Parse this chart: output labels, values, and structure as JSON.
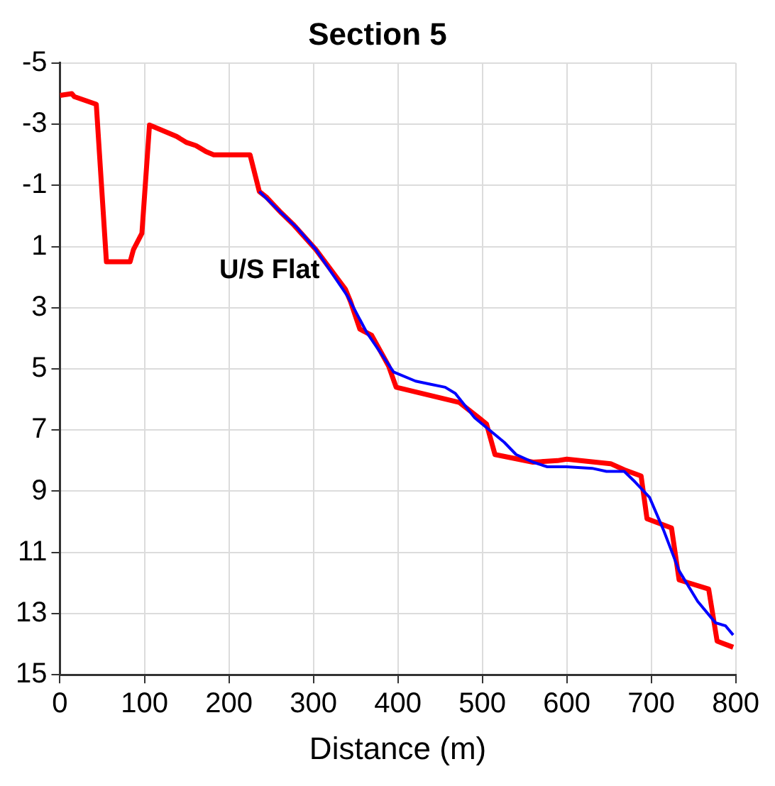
{
  "chart_data": {
    "type": "line",
    "title": "Section 5",
    "xlabel": "Distance (m)",
    "xlim": [
      0,
      800
    ],
    "xticks": [
      0,
      100,
      200,
      300,
      400,
      500,
      600,
      700,
      800
    ],
    "ylim": [
      15,
      -5
    ],
    "yticks": [
      -5,
      -3,
      -1,
      1,
      3,
      5,
      7,
      9,
      11,
      13,
      15
    ],
    "grid": true,
    "legend": false,
    "marker": "none",
    "line_style": "solid",
    "annotations": [
      "U/S Flat"
    ],
    "series": [
      {
        "color": "#0000ff",
        "x": [
          236,
          262,
          281,
          303,
          340,
          363,
          395,
          421,
          438,
          456,
          468,
          491,
          526,
          540,
          560,
          577,
          600,
          630,
          647,
          668,
          681,
          698,
          715,
          733,
          755,
          776,
          788,
          797
        ],
        "values": [
          -0.8,
          -0.1,
          0.4,
          1.1,
          2.6,
          3.8,
          5.1,
          5.4,
          5.5,
          5.6,
          5.8,
          6.6,
          7.4,
          7.8,
          8.05,
          8.2,
          8.2,
          8.25,
          8.35,
          8.35,
          8.7,
          9.2,
          10.3,
          11.6,
          12.6,
          13.3,
          13.4,
          13.7
        ]
      },
      {
        "color": "#ff0000",
        "x": [
          0,
          14,
          17,
          43,
          55,
          83,
          87,
          97,
          106,
          138,
          150,
          161,
          173,
          182,
          225,
          236,
          245,
          262,
          277,
          303,
          338,
          344,
          355,
          369,
          389,
          398,
          473,
          496,
          505,
          515,
          560,
          589,
          600,
          652,
          668,
          688,
          695,
          724,
          733,
          768,
          778,
          797
        ],
        "values": [
          -3.94,
          -4,
          -3.9,
          -3.65,
          1.5,
          1.5,
          1.1,
          0.57,
          -2.97,
          -2.6,
          -2.4,
          -2.3,
          -2.1,
          -2,
          -2,
          -0.8,
          -0.6,
          -0.1,
          0.3,
          1.1,
          2.4,
          2.8,
          3.7,
          3.9,
          4.9,
          5.6,
          6.1,
          6.6,
          6.8,
          7.8,
          8.05,
          8,
          7.95,
          8.1,
          8.3,
          8.5,
          9.9,
          10.2,
          11.9,
          12.2,
          13.9,
          14.1
        ]
      }
    ]
  }
}
